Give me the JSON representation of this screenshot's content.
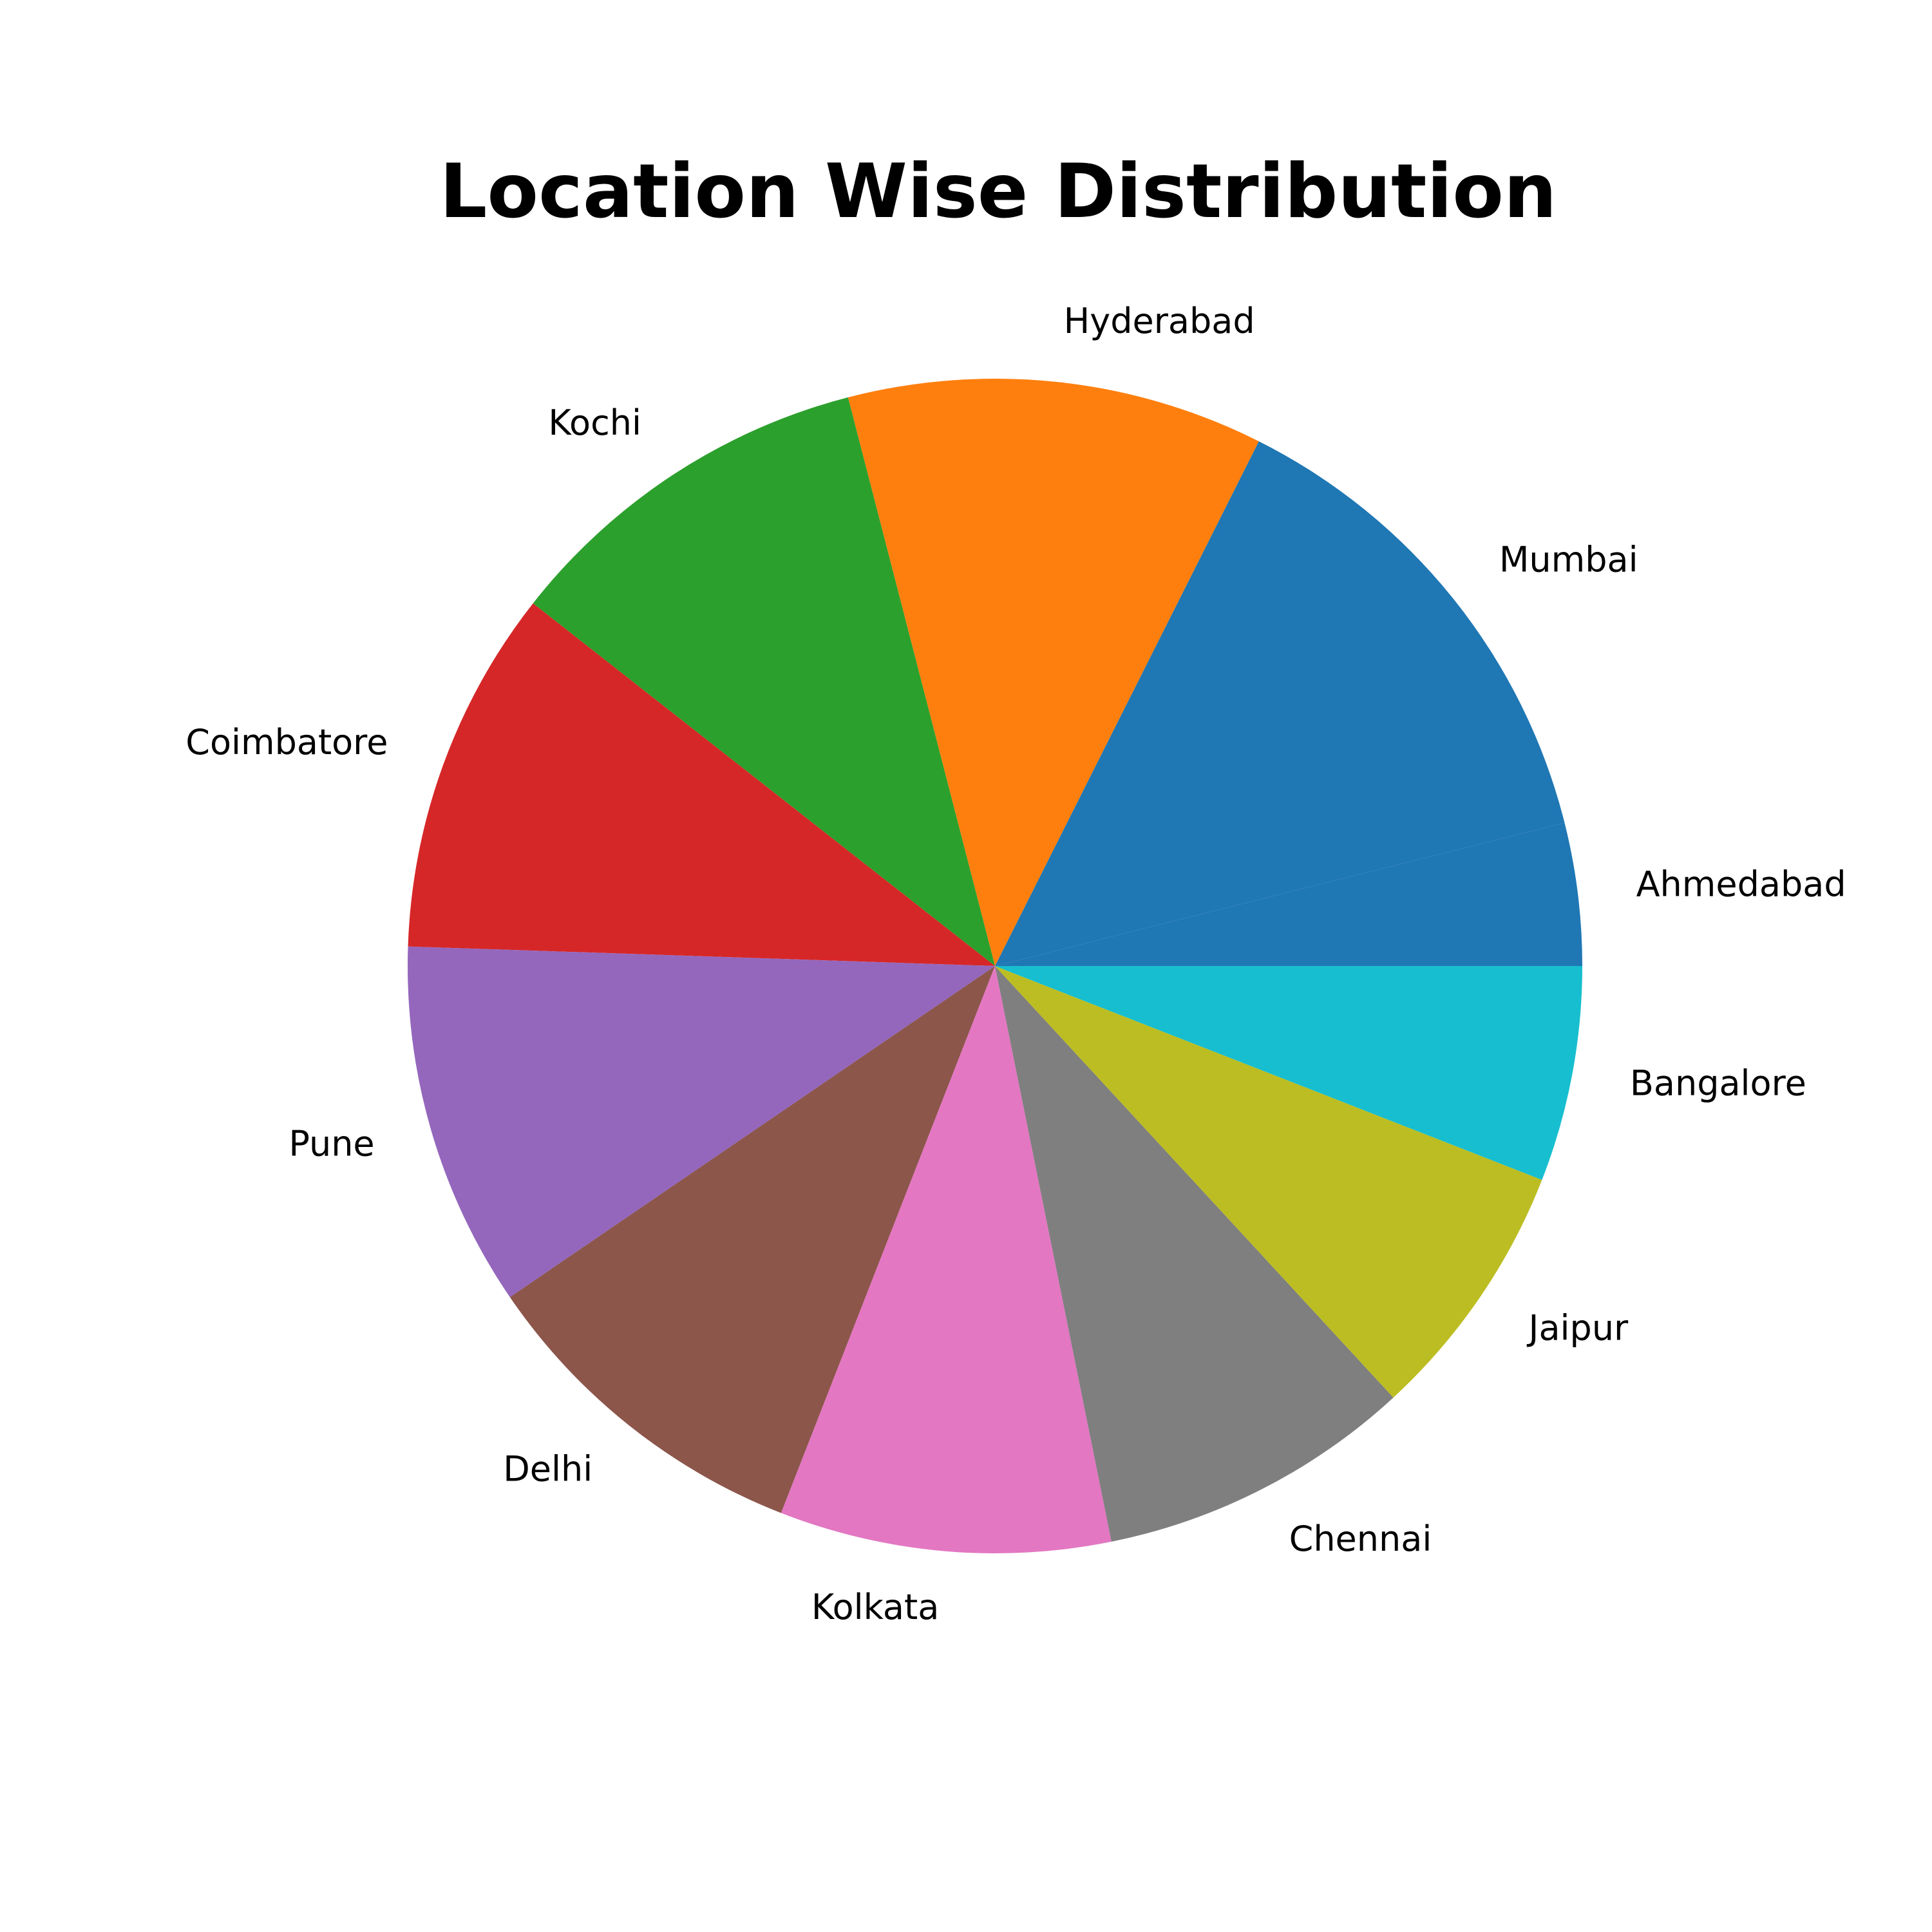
{
  "chart_data": {
    "type": "pie",
    "title": "Location Wise Distribution",
    "labels": [
      "Ahmedabad",
      "Mumbai",
      "Hyderabad",
      "Kochi",
      "Coimbatore",
      "Pune",
      "Delhi",
      "Kolkata",
      "Chennai",
      "Jaipur",
      "Bangalore"
    ],
    "values": [
      3.7,
      12.9,
      10.8,
      9.8,
      9.5,
      9.5,
      9.0,
      8.6,
      8.2,
      6.8,
      5.6
    ],
    "colors": [
      "#1f77b4",
      "#1f77b4",
      "#ff7f0e",
      "#2ca02c",
      "#d62728",
      "#9467bd",
      "#8c564b",
      "#e377c2",
      "#7f7f7f",
      "#bcbd22",
      "#17becf"
    ],
    "start_angle_deg": 0,
    "direction": "counterclockwise",
    "legend": "none"
  }
}
